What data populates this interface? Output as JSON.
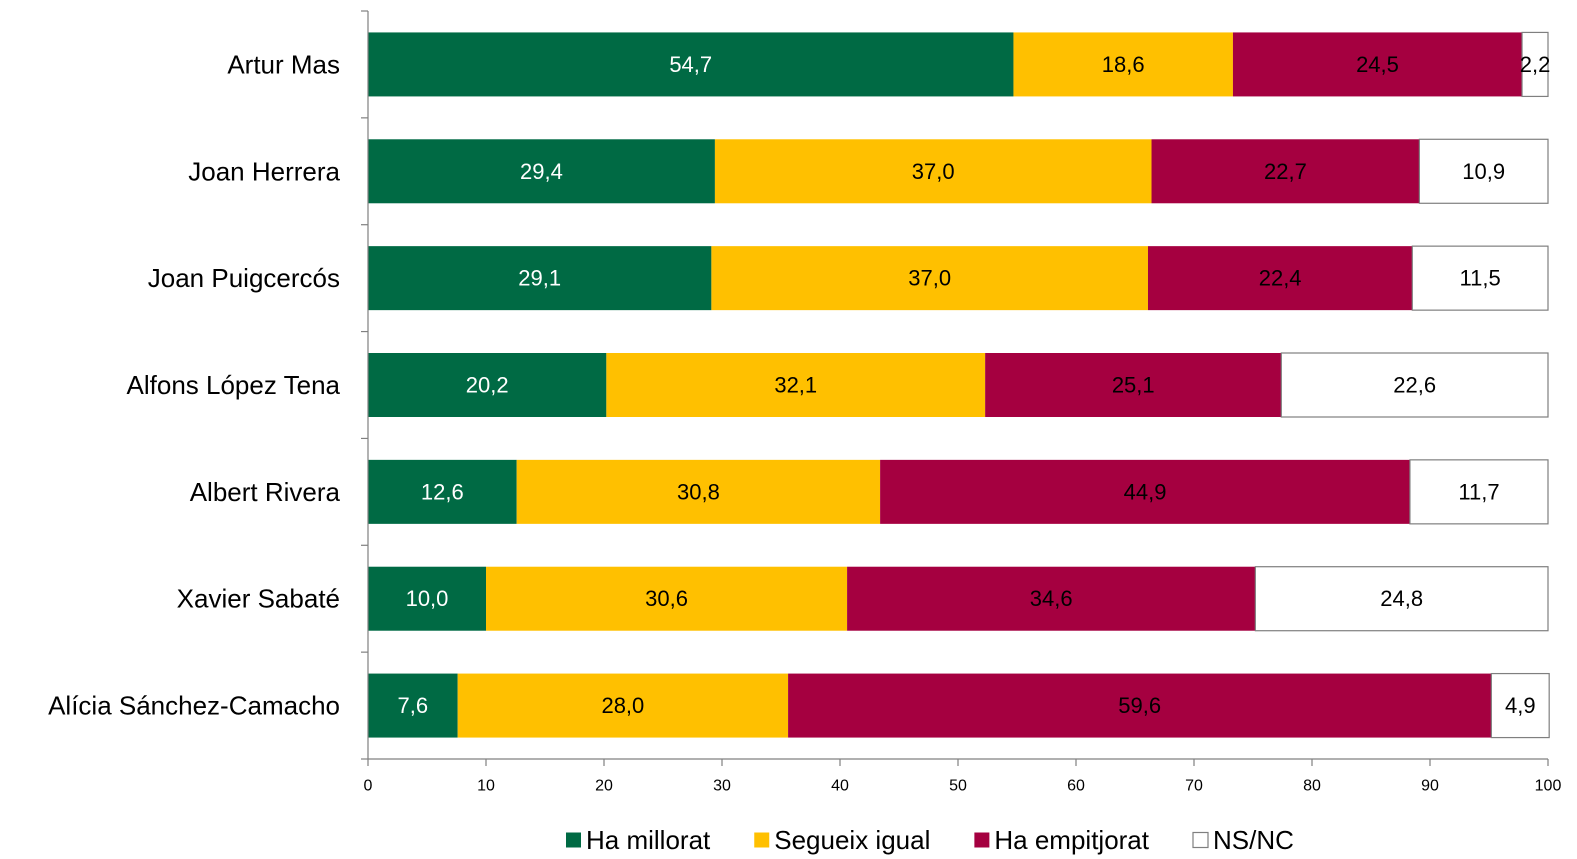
{
  "chart_data": {
    "type": "bar",
    "orientation": "horizontal",
    "stacked": true,
    "categories": [
      "Artur Mas",
      "Joan Herrera",
      "Joan Puigcercós",
      "Alfons López Tena",
      "Albert Rivera",
      "Xavier Sabaté",
      "Alícia Sánchez-Camacho"
    ],
    "series": [
      {
        "name": "Ha millorat",
        "color": "#006A44",
        "label_color": "#ffffff",
        "values": [
          54.7,
          29.4,
          29.1,
          20.2,
          12.6,
          10.0,
          7.6
        ],
        "labels": [
          "54,7",
          "29,4",
          "29,1",
          "20,2",
          "12,6",
          "10,0",
          "7,6"
        ]
      },
      {
        "name": "Segueix igual",
        "color": "#FFC000",
        "label_color": "#000000",
        "values": [
          18.6,
          37.0,
          37.0,
          32.1,
          30.8,
          30.6,
          28.0
        ],
        "labels": [
          "18,6",
          "37,0",
          "37,0",
          "32,1",
          "30,8",
          "30,6",
          "28,0"
        ]
      },
      {
        "name": "Ha empitjorat",
        "color": "#A50040",
        "label_color": "#000000",
        "values": [
          24.5,
          22.7,
          22.4,
          25.1,
          44.9,
          34.6,
          59.6
        ],
        "labels": [
          "24,5",
          "22,7",
          "22,4",
          "25,1",
          "44,9",
          "34,6",
          "59,6"
        ]
      },
      {
        "name": "NS/NC",
        "color": "#FFFFFF",
        "label_color": "#000000",
        "values": [
          2.2,
          10.9,
          11.5,
          22.6,
          11.7,
          24.8,
          4.9
        ],
        "labels": [
          "2,2",
          "10,9",
          "11,5",
          "22,6",
          "11,7",
          "24,8",
          "4,9"
        ]
      }
    ],
    "xlim": [
      0,
      100
    ],
    "xticks": [
      "0",
      "10",
      "20",
      "30",
      "40",
      "50",
      "60",
      "70",
      "80",
      "90",
      "100"
    ],
    "grid": false,
    "legend_position": "bottom",
    "title": "",
    "xlabel": "",
    "ylabel": ""
  }
}
